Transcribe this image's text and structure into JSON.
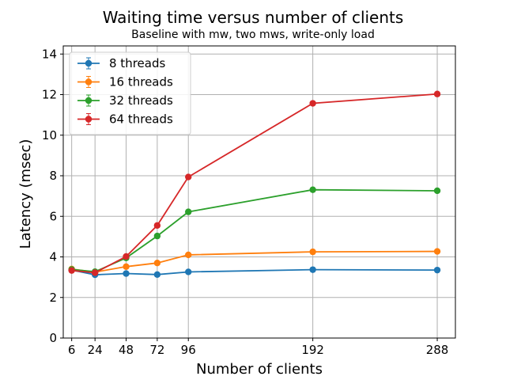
{
  "chart_data": {
    "type": "line",
    "title": "Waiting time versus number of clients",
    "subtitle": "Baseline with mw, two mws, write-only load",
    "xlabel": "Number of clients",
    "ylabel": "Latency (msec)",
    "x": [
      6,
      24,
      48,
      72,
      96,
      192,
      288
    ],
    "xlim": [
      -0.5,
      302
    ],
    "ylim": [
      0,
      14.4
    ],
    "xticks": [
      "6",
      "24",
      "48",
      "72",
      "96",
      "192",
      "288"
    ],
    "yticks": [
      "0",
      "2",
      "4",
      "6",
      "8",
      "10",
      "12",
      "14"
    ],
    "grid": true,
    "legend_position": "top-left",
    "error_bars": true,
    "series": [
      {
        "name": "8 threads",
        "color": "#1f77b4",
        "values": [
          3.35,
          3.12,
          3.18,
          3.13,
          3.26,
          3.37,
          3.35
        ]
      },
      {
        "name": "16 threads",
        "color": "#ff7f0e",
        "values": [
          3.4,
          3.25,
          3.52,
          3.7,
          4.1,
          4.25,
          4.27
        ]
      },
      {
        "name": "32 threads",
        "color": "#2ca02c",
        "values": [
          3.38,
          3.27,
          3.95,
          5.03,
          6.22,
          7.31,
          7.26
        ]
      },
      {
        "name": "64 threads",
        "color": "#d62728",
        "values": [
          3.33,
          3.22,
          4.02,
          5.55,
          7.94,
          11.57,
          12.03
        ]
      }
    ]
  }
}
